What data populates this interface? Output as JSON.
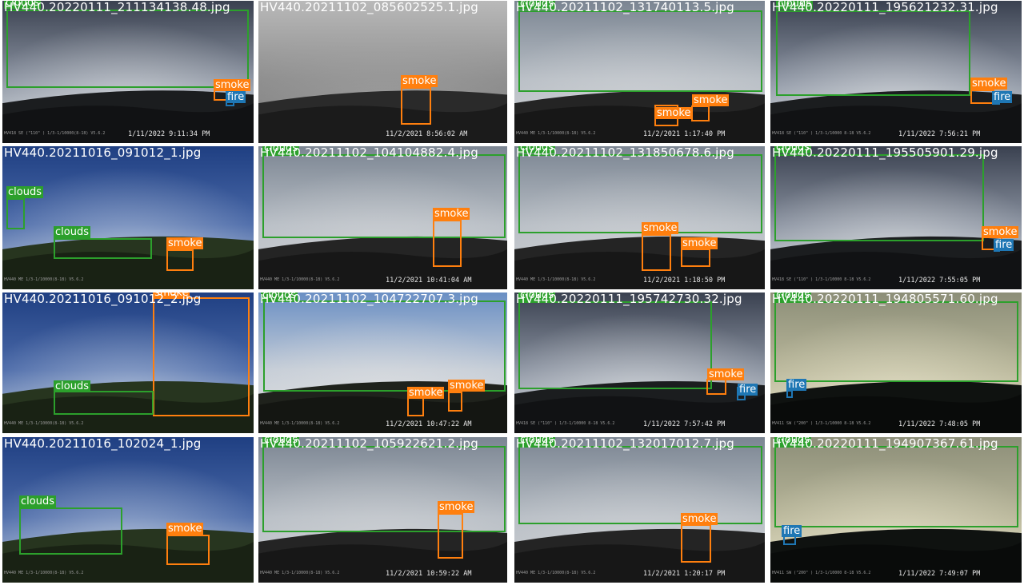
{
  "colors": {
    "clouds": "#2ca02c",
    "smoke": "#ff7f0e",
    "fire": "#1f77b4"
  },
  "tiles": [
    {
      "filename": "HV440.20220111_211134138.48.jpg",
      "timestamp": "1/11/2022 9:11:34 PM",
      "camera_text": "HV418 SE (\"110\" ) 1/3-1/10000(8-18) V5.6.2",
      "scene": "dusk",
      "boxes": [
        {
          "cls": "clouds",
          "label": "clouds"
        },
        {
          "cls": "smoke",
          "label": "smoke"
        },
        {
          "cls": "fire",
          "label": "fire"
        }
      ]
    },
    {
      "filename": "HV440.20211102_085602525.1.jpg",
      "timestamp": "11/2/2021 8:56:02 AM",
      "camera_text": "",
      "scene": "fog",
      "boxes": [
        {
          "cls": "smoke",
          "label": "smoke"
        }
      ]
    },
    {
      "filename": "HV440.20211102_131740113.5.jpg",
      "timestamp": "11/2/2021 1:17:40 PM",
      "camera_text": "HV440 ME 1/3-1/10000(8-18) V5.6.2",
      "scene": "cloudy",
      "boxes": [
        {
          "cls": "clouds",
          "label": "clouds"
        },
        {
          "cls": "smoke",
          "label": "smoke"
        },
        {
          "cls": "smoke",
          "label": "smoke"
        }
      ]
    },
    {
      "filename": "HV440.20220111_195621232.31.jpg",
      "timestamp": "1/11/2022 7:56:21 PM",
      "camera_text": "HV418 SE (\"110\" ) 1/3-1/10000 8-18 V5.6.2",
      "scene": "dusk",
      "boxes": [
        {
          "cls": "clouds",
          "label": "clouds"
        },
        {
          "cls": "smoke",
          "label": "smoke"
        },
        {
          "cls": "fire",
          "label": "fire"
        }
      ]
    },
    {
      "filename": "HV440.20211016_091012_1.jpg",
      "timestamp": "",
      "camera_text": "HV440 ME 1/3-1/10000(8-18) V5.6.2",
      "scene": "blue",
      "boxes": [
        {
          "cls": "clouds",
          "label": "clouds"
        },
        {
          "cls": "clouds",
          "label": "clouds"
        },
        {
          "cls": "smoke",
          "label": "smoke"
        }
      ]
    },
    {
      "filename": "HV440.20211102_104104882.4.jpg",
      "timestamp": "11/2/2021 10:41:04 AM",
      "camera_text": "HV440 ME 1/3-1/10000(8-18) V5.6.2",
      "scene": "cloudy",
      "boxes": [
        {
          "cls": "clouds",
          "label": "clouds"
        },
        {
          "cls": "smoke",
          "label": "smoke"
        }
      ]
    },
    {
      "filename": "HV440.20211102_131850678.6.jpg",
      "timestamp": "11/2/2021 1:18:50 PM",
      "camera_text": "HV440 ME 1/3-1/10000(8-18) V5.6.2",
      "scene": "cloudy",
      "boxes": [
        {
          "cls": "clouds",
          "label": "clouds"
        },
        {
          "cls": "smoke",
          "label": "smoke"
        },
        {
          "cls": "smoke",
          "label": "smoke"
        }
      ]
    },
    {
      "filename": "HV440.20220111_195505901.29.jpg",
      "timestamp": "1/11/2022 7:55:05 PM",
      "camera_text": "HV418 SE (\"110\" ) 1/3-1/10000 8-18 V5.6.2",
      "scene": "dusk",
      "boxes": [
        {
          "cls": "clouds",
          "label": "clouds"
        },
        {
          "cls": "smoke",
          "label": "smoke"
        },
        {
          "cls": "fire",
          "label": "fire"
        }
      ]
    },
    {
      "filename": "HV440.20211016_091012_2.jpg",
      "timestamp": "",
      "camera_text": "HV440 ME 1/3-1/10000(8-18) V5.6.2",
      "scene": "blue",
      "boxes": [
        {
          "cls": "smoke",
          "label": "smoke"
        },
        {
          "cls": "clouds",
          "label": "clouds"
        }
      ]
    },
    {
      "filename": "HV440.20211102_104722707.3.jpg",
      "timestamp": "11/2/2021 10:47:22 AM",
      "camera_text": "HV440 ME 1/3-1/10000(8-18) V5.6.2",
      "scene": "bluecloud",
      "boxes": [
        {
          "cls": "clouds",
          "label": "clouds"
        },
        {
          "cls": "smoke",
          "label": "smoke"
        },
        {
          "cls": "smoke",
          "label": "smoke"
        }
      ]
    },
    {
      "filename": "HV440.20220111_195742730.32.jpg",
      "timestamp": "1/11/2022 7:57:42 PM",
      "camera_text": "HV418 SE (\"110\" ) 1/3-1/10000 8-18 V5.6.2",
      "scene": "dusk",
      "boxes": [
        {
          "cls": "clouds",
          "label": "clouds"
        },
        {
          "cls": "smoke",
          "label": "smoke"
        },
        {
          "cls": "fire",
          "label": "fire"
        }
      ]
    },
    {
      "filename": "HV440.20220111_194805571.60.jpg",
      "timestamp": "1/11/2022 7:48:05 PM",
      "camera_text": "HV411 SW (\"200\" ) 1/3-1/10000 8-18 V5.6.2",
      "scene": "night",
      "boxes": [
        {
          "cls": "clouds",
          "label": "clouds"
        },
        {
          "cls": "fire",
          "label": "fire"
        }
      ]
    },
    {
      "filename": "HV440.20211016_102024_1.jpg",
      "timestamp": "",
      "camera_text": "HV440 ME 1/3-1/10000(8-18) V5.6.2",
      "scene": "blue",
      "boxes": [
        {
          "cls": "clouds",
          "label": "clouds"
        },
        {
          "cls": "smoke",
          "label": "smoke"
        }
      ]
    },
    {
      "filename": "HV440.20211102_105922621.2.jpg",
      "timestamp": "11/2/2021 10:59:22 AM",
      "camera_text": "HV440 ME 1/3-1/10000(8-18) V5.6.2",
      "scene": "cloudy",
      "boxes": [
        {
          "cls": "clouds",
          "label": "clouds"
        },
        {
          "cls": "smoke",
          "label": "smoke"
        }
      ]
    },
    {
      "filename": "HV440.20211102_132017012.7.jpg",
      "timestamp": "11/2/2021 1:20:17 PM",
      "camera_text": "HV440 ME 1/3-1/10000(8-18) V5.6.2",
      "scene": "cloudy",
      "boxes": [
        {
          "cls": "clouds",
          "label": "clouds"
        },
        {
          "cls": "smoke",
          "label": "smoke"
        }
      ]
    },
    {
      "filename": "HV440.20220111_194907367.61.jpg",
      "timestamp": "1/11/2022 7:49:07 PM",
      "camera_text": "HV411 SW (\"200\" ) 1/3-1/10000 8-18 V5.6.2",
      "scene": "night",
      "boxes": [
        {
          "cls": "clouds",
          "label": "clouds"
        },
        {
          "cls": "fire",
          "label": "fire"
        }
      ]
    }
  ]
}
